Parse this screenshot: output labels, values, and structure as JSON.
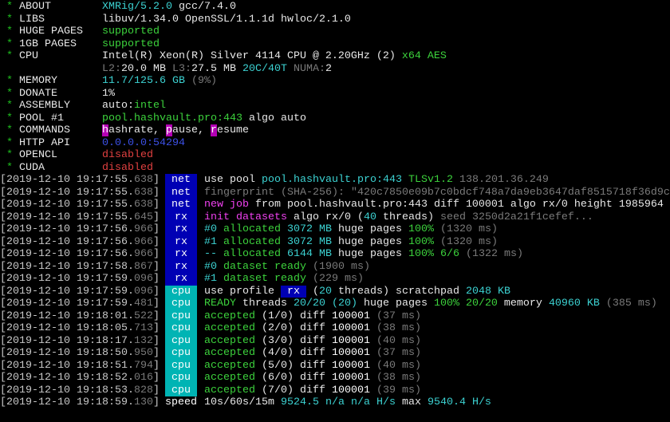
{
  "colors": {
    "net_tag": "#0000b4",
    "cpu_tag": "#00b4b4",
    "cyan": "#3cd2d2",
    "green": "#3cd23c",
    "magenta": "#f040f0",
    "red": "#e04040",
    "gray": "#7a7a7a"
  },
  "header": [
    {
      "star": "*",
      "label": "ABOUT",
      "value": [
        [
          "XMRig/5.2.0",
          "c"
        ],
        [
          " gcc/7.4.0",
          "W"
        ]
      ]
    },
    {
      "star": "*",
      "label": "LIBS",
      "value": [
        [
          "libuv/1.34.0 OpenSSL/1.1.1d hwloc/2.1.0",
          "W"
        ]
      ]
    },
    {
      "star": "*",
      "label": "HUGE PAGES",
      "value": [
        [
          "supported",
          "g"
        ]
      ]
    },
    {
      "star": "*",
      "label": "1GB PAGES",
      "value": [
        [
          "supported",
          "g"
        ]
      ]
    },
    {
      "star": "*",
      "label": "CPU",
      "value": [
        [
          "Intel(R) Xeon(R) Silver 4114 CPU @ 2.20GHz (2)",
          "W"
        ],
        [
          " x64 AES",
          "g"
        ]
      ]
    },
    {
      "star": "",
      "label": "",
      "value": [
        [
          "L2:",
          "gr"
        ],
        [
          "20.0 MB ",
          "W"
        ],
        [
          "L3:",
          "gr"
        ],
        [
          "27.5 MB ",
          "W"
        ],
        [
          "20C/40T",
          "c"
        ],
        [
          " NUMA:",
          "gr"
        ],
        [
          "2",
          "W"
        ]
      ]
    },
    {
      "star": "*",
      "label": "MEMORY",
      "value": [
        [
          "11.7/125.6 GB",
          "c"
        ],
        [
          " (9%)",
          "gr"
        ]
      ]
    },
    {
      "star": "*",
      "label": "DONATE",
      "value": [
        [
          "1%",
          "W"
        ]
      ]
    },
    {
      "star": "*",
      "label": "ASSEMBLY",
      "value": [
        [
          "auto:",
          "W"
        ],
        [
          "intel",
          "g"
        ]
      ]
    },
    {
      "star": "*",
      "label": "POOL #1",
      "value": [
        [
          "pool.hashvault.pro:443",
          "g"
        ],
        [
          " algo auto",
          "W"
        ]
      ]
    },
    {
      "star": "*",
      "label": "COMMANDS",
      "value": [
        [
          "h",
          "hl"
        ],
        [
          "ashrate, ",
          "W"
        ],
        [
          "p",
          "hl"
        ],
        [
          "ause, ",
          "W"
        ],
        [
          "r",
          "hl"
        ],
        [
          "esume",
          "W"
        ]
      ]
    },
    {
      "star": "*",
      "label": "HTTP API",
      "value": [
        [
          "0.0.0.0:54294",
          "b"
        ]
      ]
    },
    {
      "star": "*",
      "label": "OPENCL",
      "value": [
        [
          "disabled",
          "r"
        ]
      ]
    },
    {
      "star": "*",
      "label": "CUDA",
      "value": [
        [
          "disabled",
          "r"
        ]
      ]
    }
  ],
  "log": [
    {
      "time": "[2019-12-10 19:17:55.",
      "ms": "638",
      "close": "]",
      "tag": "net",
      "msg": [
        [
          "use pool ",
          "W"
        ],
        [
          "pool.hashvault.pro:443 ",
          "c"
        ],
        [
          "TLSv1.2",
          "g"
        ],
        [
          " 138.201.36.249",
          "gr"
        ]
      ]
    },
    {
      "time": "[2019-12-10 19:17:55.",
      "ms": "638",
      "close": "]",
      "tag": "net",
      "msg": [
        [
          "fingerprint (SHA-256): \"420c7850e09b7c0bdcf748a7da9eb3647daf8515718f36d9c",
          "gr"
        ]
      ]
    },
    {
      "time": "[2019-12-10 19:17:55.",
      "ms": "638",
      "close": "]",
      "tag": "net",
      "msg": [
        [
          "new job",
          "m"
        ],
        [
          " from pool.hashvault.pro:443 diff 100001 algo rx/0 height 1985964",
          "W"
        ]
      ]
    },
    {
      "time": "[2019-12-10 19:17:55.",
      "ms": "645",
      "close": "]",
      "tag": "rx",
      "msg": [
        [
          "init datasets",
          "m"
        ],
        [
          " algo rx/0 (",
          "W"
        ],
        [
          "40",
          "c"
        ],
        [
          " threads)",
          "W"
        ],
        [
          " seed 3250d2a21f1cefef...",
          "gr"
        ]
      ]
    },
    {
      "time": "[2019-12-10 19:17:56.",
      "ms": "966",
      "close": "]",
      "tag": "rx",
      "msg": [
        [
          "#0",
          "c"
        ],
        [
          " allocated ",
          "g"
        ],
        [
          "3072 MB",
          "c"
        ],
        [
          " huge pages ",
          "W"
        ],
        [
          "100%",
          "g"
        ],
        [
          " (1320 ms)",
          "gr"
        ]
      ]
    },
    {
      "time": "[2019-12-10 19:17:56.",
      "ms": "966",
      "close": "]",
      "tag": "rx",
      "msg": [
        [
          "#1",
          "c"
        ],
        [
          " allocated ",
          "g"
        ],
        [
          "3072 MB",
          "c"
        ],
        [
          " huge pages ",
          "W"
        ],
        [
          "100%",
          "g"
        ],
        [
          " (1320 ms)",
          "gr"
        ]
      ]
    },
    {
      "time": "[2019-12-10 19:17:56.",
      "ms": "966",
      "close": "]",
      "tag": "rx",
      "msg": [
        [
          "--",
          "c"
        ],
        [
          " allocated ",
          "g"
        ],
        [
          "6144 MB",
          "c"
        ],
        [
          " huge pages ",
          "W"
        ],
        [
          "100% 6/6",
          "g"
        ],
        [
          " (1322 ms)",
          "gr"
        ]
      ]
    },
    {
      "time": "[2019-12-10 19:17:58.",
      "ms": "867",
      "close": "]",
      "tag": "rx",
      "msg": [
        [
          "#0",
          "c"
        ],
        [
          " dataset ready",
          "g"
        ],
        [
          " (1900 ms)",
          "gr"
        ]
      ]
    },
    {
      "time": "[2019-12-10 19:17:59.",
      "ms": "096",
      "close": "]",
      "tag": "rx",
      "msg": [
        [
          "#1",
          "c"
        ],
        [
          " dataset ready",
          "g"
        ],
        [
          " (229 ms)",
          "gr"
        ]
      ]
    },
    {
      "time": "[2019-12-10 19:17:59.",
      "ms": "096",
      "close": "]",
      "tag": "cpu",
      "msg": [
        [
          "use profile ",
          "W"
        ],
        [
          " rx ",
          "tb"
        ],
        [
          " (",
          "W"
        ],
        [
          "20",
          "c"
        ],
        [
          " threads) scratchpad ",
          "W"
        ],
        [
          "2048 KB",
          "c"
        ]
      ]
    },
    {
      "time": "[2019-12-10 19:17:59.",
      "ms": "481",
      "close": "]",
      "tag": "cpu",
      "msg": [
        [
          "READY",
          "g"
        ],
        [
          " threads ",
          "W"
        ],
        [
          "20/20 (20)",
          "c"
        ],
        [
          " huge pages ",
          "W"
        ],
        [
          "100% 20/20",
          "g"
        ],
        [
          " memory ",
          "W"
        ],
        [
          "40960 KB",
          "c"
        ],
        [
          " (385 ms)",
          "gr"
        ]
      ]
    },
    {
      "time": "[2019-12-10 19:18:01.",
      "ms": "522",
      "close": "]",
      "tag": "cpu",
      "msg": [
        [
          "accepted",
          "g"
        ],
        [
          " (1/0) diff ",
          "W"
        ],
        [
          "100001",
          "Wb"
        ],
        [
          " (37 ms)",
          "gr"
        ]
      ]
    },
    {
      "time": "[2019-12-10 19:18:05.",
      "ms": "713",
      "close": "]",
      "tag": "cpu",
      "msg": [
        [
          "accepted",
          "g"
        ],
        [
          " (2/0) diff ",
          "W"
        ],
        [
          "100001",
          "Wb"
        ],
        [
          " (38 ms)",
          "gr"
        ]
      ]
    },
    {
      "time": "[2019-12-10 19:18:17.",
      "ms": "132",
      "close": "]",
      "tag": "cpu",
      "msg": [
        [
          "accepted",
          "g"
        ],
        [
          " (3/0) diff ",
          "W"
        ],
        [
          "100001",
          "Wb"
        ],
        [
          " (40 ms)",
          "gr"
        ]
      ]
    },
    {
      "time": "[2019-12-10 19:18:50.",
      "ms": "950",
      "close": "]",
      "tag": "cpu",
      "msg": [
        [
          "accepted",
          "g"
        ],
        [
          " (4/0) diff ",
          "W"
        ],
        [
          "100001",
          "Wb"
        ],
        [
          " (37 ms)",
          "gr"
        ]
      ]
    },
    {
      "time": "[2019-12-10 19:18:51.",
      "ms": "794",
      "close": "]",
      "tag": "cpu",
      "msg": [
        [
          "accepted",
          "g"
        ],
        [
          " (5/0) diff ",
          "W"
        ],
        [
          "100001",
          "Wb"
        ],
        [
          " (40 ms)",
          "gr"
        ]
      ]
    },
    {
      "time": "[2019-12-10 19:18:52.",
      "ms": "016",
      "close": "]",
      "tag": "cpu",
      "msg": [
        [
          "accepted",
          "g"
        ],
        [
          " (6/0) diff ",
          "W"
        ],
        [
          "100001",
          "Wb"
        ],
        [
          " (38 ms)",
          "gr"
        ]
      ]
    },
    {
      "time": "[2019-12-10 19:18:53.",
      "ms": "828",
      "close": "]",
      "tag": "cpu",
      "msg": [
        [
          "accepted",
          "g"
        ],
        [
          " (7/0) diff ",
          "W"
        ],
        [
          "100001",
          "Wb"
        ],
        [
          " (39 ms)",
          "gr"
        ]
      ]
    },
    {
      "time": "[2019-12-10 19:18:59.",
      "ms": "130",
      "close": "]",
      "tag": "speed",
      "msg": [
        [
          "10s/60s/15m ",
          "W"
        ],
        [
          "9524.5 n/a n/a H/s",
          "c"
        ],
        [
          " max ",
          "W"
        ],
        [
          "9540.4 H/s",
          "c"
        ]
      ]
    }
  ]
}
